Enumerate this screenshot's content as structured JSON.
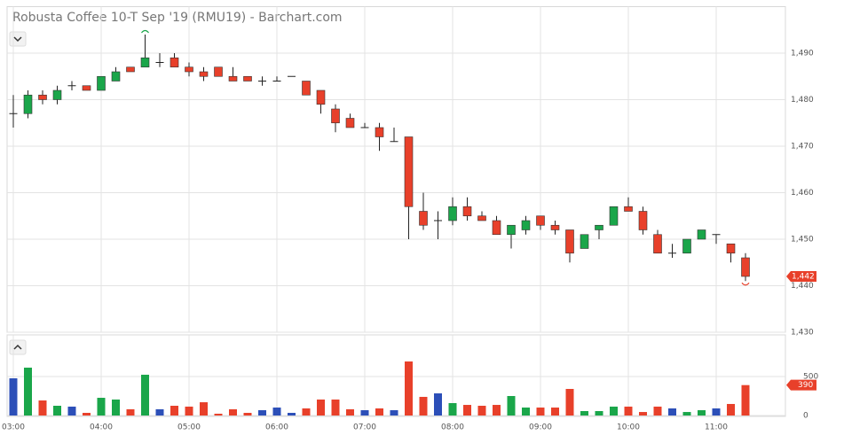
{
  "chart_data": {
    "type": "candlestick",
    "title": "Robusta Coffee 10-T Sep '19 (RMU19) - Barchart.com",
    "categories": [
      "03:00",
      null,
      null,
      null,
      null,
      null,
      "04:00",
      null,
      null,
      null,
      null,
      null,
      "05:00",
      null,
      null,
      null,
      null,
      null,
      "06:00",
      null,
      null,
      null,
      null,
      null,
      "07:00",
      null,
      null,
      null,
      null,
      null,
      "08:00",
      null,
      null,
      null,
      null,
      null,
      "09:00",
      null,
      null,
      null,
      null,
      null,
      "10:00",
      null,
      null,
      null,
      null,
      null,
      "11:00",
      null,
      null
    ],
    "open": [
      1477,
      1477,
      1481,
      1480,
      1483,
      1483,
      1482,
      1484,
      1487,
      1487,
      1488,
      1489,
      1487,
      1486,
      1487,
      1485,
      1485,
      1484,
      1484,
      1485,
      1484,
      1482,
      1478,
      1476,
      1474,
      1474,
      1471,
      1472,
      1456,
      1454,
      1454,
      1457,
      1455,
      1454,
      1451,
      1452,
      1455,
      1453,
      1452,
      1448,
      1452,
      1453,
      1457,
      1456,
      1451,
      1447,
      1447,
      1450,
      1451,
      1449,
      1446
    ],
    "high": [
      1481,
      1482,
      1482,
      1483,
      1484,
      1483,
      1485,
      1487,
      1487,
      1494,
      1490,
      1490,
      1488,
      1487,
      1487,
      1487,
      1485,
      1485,
      1485,
      1485,
      1484,
      1482,
      1479,
      1477,
      1475,
      1475,
      1474,
      1472,
      1460,
      1456,
      1459,
      1459,
      1456,
      1455,
      1453,
      1455,
      1455,
      1454,
      1452,
      1451,
      1453,
      1457,
      1459,
      1457,
      1452,
      1449,
      1450,
      1452,
      1451,
      1449,
      1447
    ],
    "low": [
      1474,
      1476,
      1479,
      1479,
      1482,
      1482,
      1482,
      1484,
      1486,
      1487,
      1487,
      1487,
      1485,
      1484,
      1485,
      1484,
      1484,
      1483,
      1484,
      1485,
      1481,
      1477,
      1473,
      1474,
      1474,
      1469,
      1471,
      1450,
      1452,
      1450,
      1453,
      1454,
      1454,
      1451,
      1448,
      1451,
      1452,
      1451,
      1445,
      1448,
      1450,
      1453,
      1456,
      1451,
      1447,
      1446,
      1447,
      1450,
      1449,
      1445,
      1441
    ],
    "close": [
      1477,
      1481,
      1480,
      1482,
      1483,
      1482,
      1485,
      1486,
      1486,
      1489,
      1488,
      1487,
      1486,
      1485,
      1485,
      1484,
      1484,
      1484,
      1484,
      1485,
      1481,
      1479,
      1475,
      1474,
      1474,
      1472,
      1471,
      1457,
      1453,
      1454,
      1457,
      1455,
      1454,
      1451,
      1453,
      1454,
      1453,
      1452,
      1447,
      1451,
      1453,
      1457,
      1456,
      1452,
      1447,
      1447,
      1450,
      1452,
      1451,
      1447,
      1442
    ],
    "up_color": "#1aa64a",
    "down_color": "#e8402a",
    "flat_color": "#333333",
    "flat_volume_color": "#2c4fb8",
    "ylim": [
      1430,
      1500
    ],
    "yticks": [
      {
        "value": 1430,
        "label": "1,430"
      },
      {
        "value": 1440,
        "label": "1,440"
      },
      {
        "value": 1450,
        "label": "1,450"
      },
      {
        "value": 1460,
        "label": "1,460"
      },
      {
        "value": 1470,
        "label": "1,470"
      },
      {
        "value": 1480,
        "label": "1,480"
      },
      {
        "value": 1490,
        "label": "1,490"
      }
    ],
    "last_price": {
      "value": 1442,
      "label": "1,442"
    },
    "volume": [
      477,
      614,
      193,
      125,
      114,
      34,
      227,
      205,
      80,
      523,
      80,
      125,
      114,
      170,
      23,
      80,
      34,
      68,
      102,
      34,
      91,
      205,
      205,
      80,
      68,
      91,
      68,
      693,
      239,
      284,
      159,
      136,
      125,
      136,
      250,
      102,
      102,
      102,
      341,
      57,
      57,
      114,
      114,
      45,
      114,
      91,
      45,
      68,
      91,
      148,
      390
    ],
    "volume_ylim": [
      0,
      1000
    ],
    "volume_yticks": [
      0,
      500
    ],
    "last_volume": 390,
    "grid": true
  }
}
